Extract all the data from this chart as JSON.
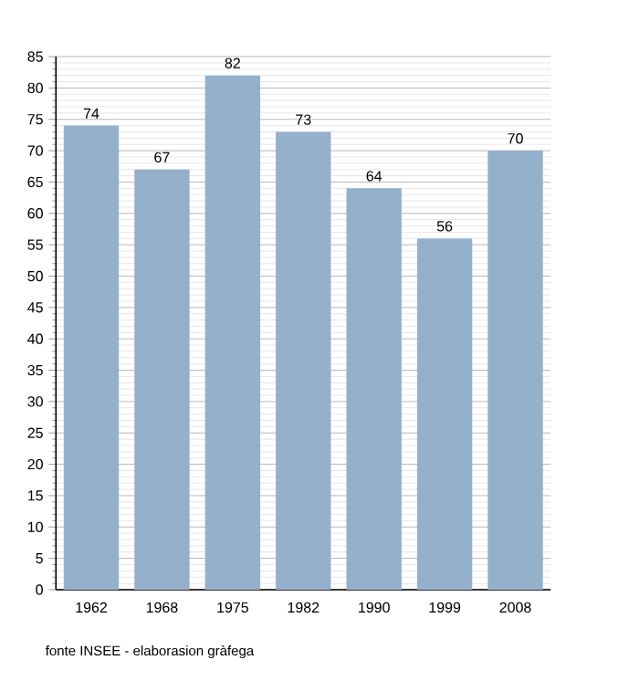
{
  "chart_data": {
    "type": "bar",
    "categories": [
      "1962",
      "1968",
      "1975",
      "1982",
      "1990",
      "1999",
      "2008"
    ],
    "values": [
      74,
      67,
      82,
      73,
      64,
      56,
      70
    ],
    "color": "#95b0cb",
    "ylim": [
      0,
      85
    ],
    "yticks": [
      0,
      5,
      10,
      15,
      20,
      25,
      30,
      35,
      40,
      45,
      50,
      55,
      60,
      65,
      70,
      75,
      80,
      85
    ],
    "grid": true,
    "data_labels": true,
    "annotations": [
      "fonte INSEE - elaborasion gràfega"
    ]
  }
}
